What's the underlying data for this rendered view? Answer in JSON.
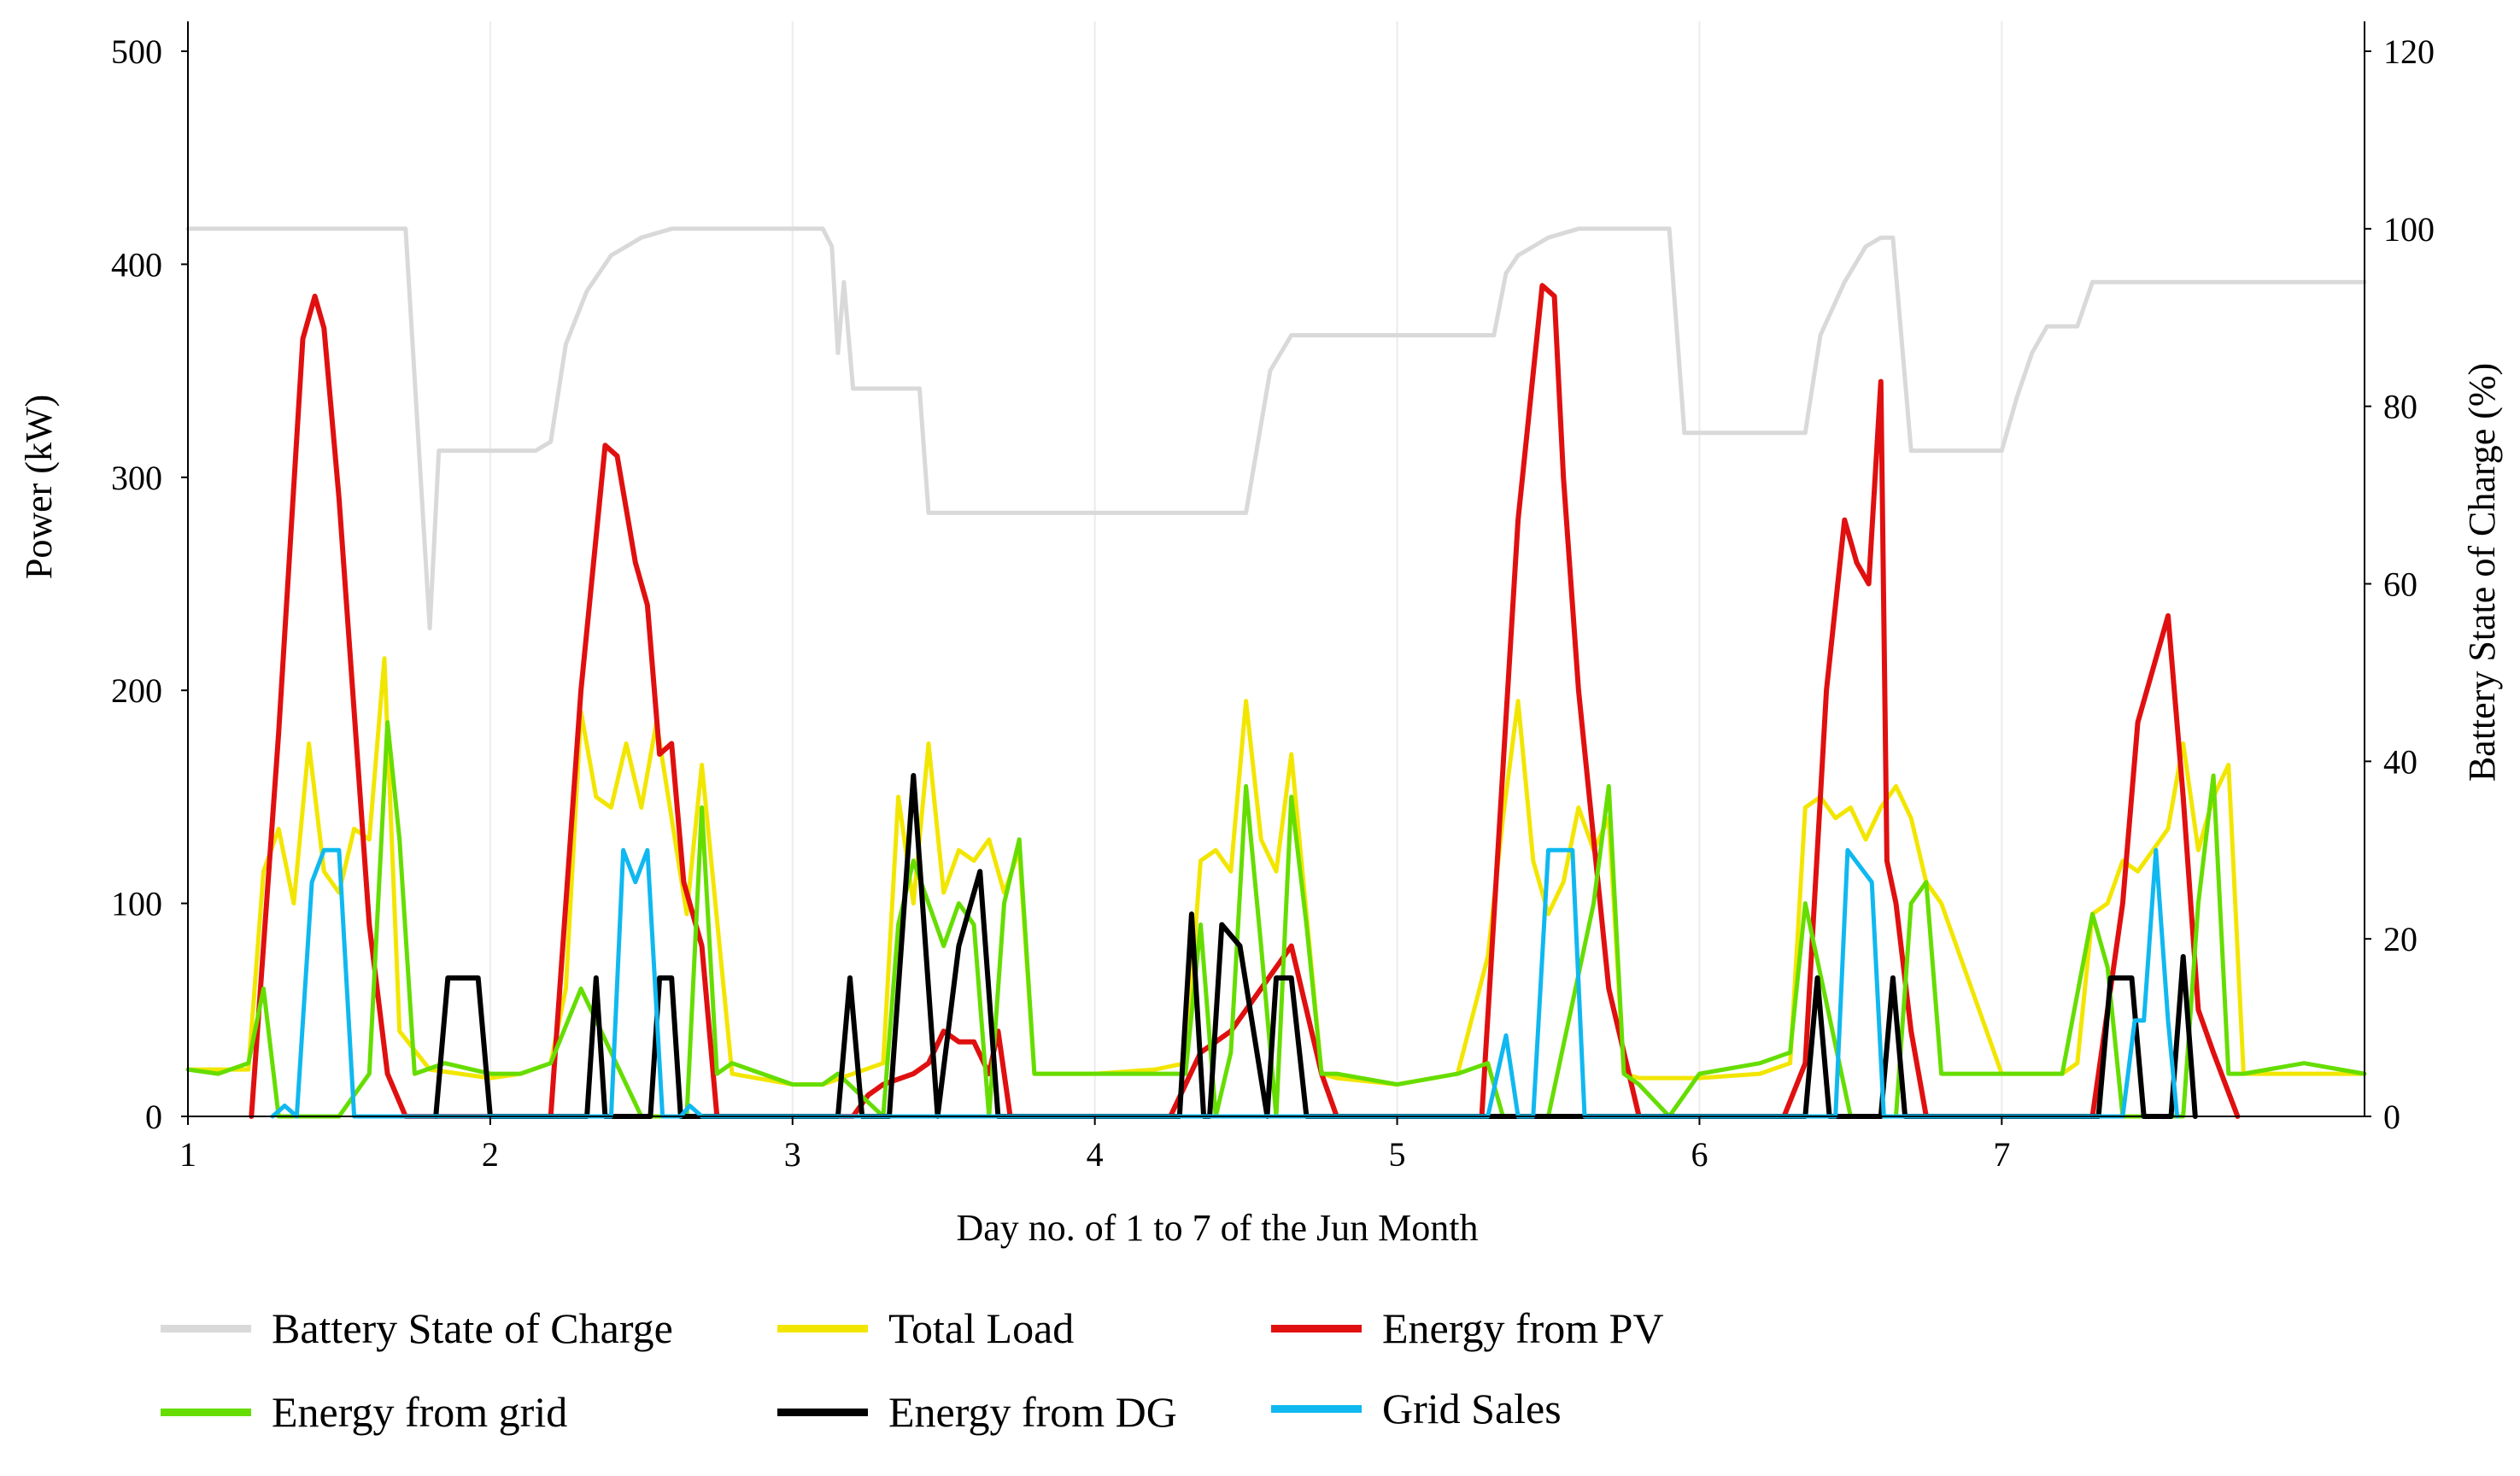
{
  "chart_data": {
    "type": "line",
    "xlabel": "Day no. of 1 to 7 of the Jun Month",
    "ylabel": "Power (kW)",
    "y2label": "Battery State of Charge (%)",
    "xlim": [
      1,
      8.2
    ],
    "ylim": [
      0,
      500
    ],
    "y2lim": [
      0,
      120
    ],
    "x_ticks": [
      1,
      2,
      3,
      4,
      5,
      6,
      7
    ],
    "x_tick_labels": [
      "1",
      "2",
      "3",
      "4",
      "5",
      "6",
      "7"
    ],
    "y_ticks": [
      0,
      100,
      200,
      300,
      400,
      500
    ],
    "y_tick_labels": [
      "0",
      "100",
      "200",
      "300",
      "400",
      "500"
    ],
    "y2_ticks": [
      0,
      20,
      40,
      60,
      80,
      100,
      120
    ],
    "y2_tick_labels": [
      "0",
      "20",
      "40",
      "60",
      "80",
      "100",
      "120"
    ],
    "legend_position": "bottom",
    "series": [
      {
        "name": "Battery State of Charge",
        "axis": "right",
        "color": "#d9d9d9",
        "x": [
          1.0,
          1.72,
          1.8,
          1.83,
          2.15,
          2.2,
          2.25,
          2.32,
          2.4,
          2.5,
          2.6,
          2.8,
          3.0,
          3.1,
          3.13,
          3.15,
          3.17,
          3.2,
          3.42,
          3.45,
          3.5,
          4.2,
          4.5,
          4.58,
          4.65,
          5.0,
          5.32,
          5.36,
          5.4,
          5.45,
          5.5,
          5.6,
          5.9,
          5.95,
          6.35,
          6.4,
          6.48,
          6.55,
          6.6,
          6.64,
          6.7,
          6.72,
          7.0,
          7.05,
          7.1,
          7.15,
          7.25,
          7.3,
          7.35,
          8.2
        ],
        "y": [
          100,
          100,
          55,
          75,
          75,
          76,
          87,
          93,
          97,
          99,
          100,
          100,
          100,
          100,
          98,
          86,
          94,
          82,
          82,
          68,
          68,
          68,
          68,
          84,
          88,
          88,
          88,
          95,
          97,
          98,
          99,
          100,
          100,
          77,
          77,
          88,
          94,
          98,
          99,
          99,
          75,
          75,
          75,
          81,
          86,
          89,
          89,
          94,
          94,
          94
        ]
      },
      {
        "name": "Total Load",
        "axis": "left",
        "color": "#f2e600",
        "x": [
          1.0,
          1.2,
          1.25,
          1.3,
          1.35,
          1.4,
          1.45,
          1.5,
          1.55,
          1.6,
          1.65,
          1.7,
          1.8,
          1.9,
          2.0,
          2.1,
          2.2,
          2.25,
          2.3,
          2.35,
          2.4,
          2.45,
          2.5,
          2.55,
          2.6,
          2.65,
          2.7,
          2.8,
          3.0,
          3.1,
          3.2,
          3.3,
          3.35,
          3.4,
          3.45,
          3.5,
          3.55,
          3.6,
          3.65,
          3.7,
          3.75,
          3.8,
          4.0,
          4.2,
          4.3,
          4.35,
          4.4,
          4.45,
          4.5,
          4.55,
          4.6,
          4.65,
          4.7,
          4.75,
          4.8,
          5.0,
          5.2,
          5.3,
          5.35,
          5.4,
          5.45,
          5.5,
          5.55,
          5.6,
          5.65,
          5.7,
          5.75,
          5.8,
          6.0,
          6.2,
          6.3,
          6.35,
          6.4,
          6.45,
          6.5,
          6.55,
          6.6,
          6.65,
          6.7,
          6.75,
          6.8,
          7.0,
          7.2,
          7.25,
          7.3,
          7.35,
          7.4,
          7.45,
          7.5,
          7.55,
          7.6,
          7.65,
          7.7,
          7.75,
          7.8,
          8.0,
          8.2
        ],
        "y": [
          22,
          22,
          115,
          135,
          100,
          175,
          115,
          105,
          135,
          130,
          215,
          40,
          22,
          20,
          18,
          20,
          25,
          60,
          190,
          150,
          145,
          175,
          145,
          185,
          140,
          95,
          165,
          20,
          15,
          15,
          20,
          25,
          150,
          100,
          175,
          105,
          125,
          120,
          130,
          105,
          125,
          20,
          20,
          22,
          25,
          120,
          125,
          115,
          195,
          130,
          115,
          170,
          95,
          20,
          18,
          15,
          20,
          75,
          140,
          195,
          120,
          95,
          110,
          145,
          125,
          140,
          20,
          18,
          18,
          20,
          25,
          145,
          150,
          140,
          145,
          130,
          145,
          155,
          140,
          110,
          100,
          20,
          20,
          25,
          95,
          100,
          120,
          115,
          125,
          135,
          175,
          125,
          150,
          165,
          20,
          20,
          20
        ]
      },
      {
        "name": "Energy from PV",
        "axis": "left",
        "color": "#e01010",
        "x": [
          1.21,
          1.3,
          1.38,
          1.42,
          1.45,
          1.5,
          1.6,
          1.66,
          1.72,
          2.2,
          2.3,
          2.38,
          2.42,
          2.48,
          2.52,
          2.56,
          2.6,
          2.64,
          2.7,
          2.75,
          3.15,
          3.2,
          3.25,
          3.3,
          3.4,
          3.45,
          3.5,
          3.55,
          3.6,
          3.65,
          3.68,
          3.72,
          4.25,
          4.35,
          4.45,
          4.55,
          4.65,
          4.75,
          4.8,
          5.28,
          5.4,
          5.48,
          5.52,
          5.55,
          5.6,
          5.7,
          5.8,
          6.28,
          6.35,
          6.42,
          6.48,
          6.52,
          6.56,
          6.6,
          6.62,
          6.65,
          6.7,
          6.75,
          7.3,
          7.4,
          7.45,
          7.5,
          7.55,
          7.6,
          7.65,
          7.7,
          7.78
        ],
        "y": [
          0,
          180,
          365,
          385,
          370,
          290,
          90,
          20,
          0,
          0,
          200,
          315,
          310,
          260,
          240,
          170,
          175,
          110,
          80,
          0,
          0,
          0,
          10,
          15,
          20,
          25,
          40,
          35,
          35,
          20,
          40,
          0,
          0,
          30,
          40,
          60,
          80,
          20,
          0,
          0,
          280,
          390,
          385,
          300,
          200,
          60,
          0,
          0,
          25,
          200,
          280,
          260,
          250,
          345,
          120,
          100,
          40,
          0,
          0,
          100,
          185,
          210,
          235,
          150,
          50,
          30,
          0
        ]
      },
      {
        "name": "Energy from grid",
        "axis": "left",
        "color": "#66dd00",
        "x": [
          1.0,
          1.1,
          1.2,
          1.25,
          1.3,
          1.5,
          1.6,
          1.66,
          1.7,
          1.75,
          1.85,
          2.0,
          2.1,
          2.2,
          2.3,
          2.5,
          2.65,
          2.7,
          2.75,
          2.8,
          3.0,
          3.1,
          3.15,
          3.3,
          3.35,
          3.4,
          3.5,
          3.55,
          3.6,
          3.65,
          3.7,
          3.75,
          3.8,
          4.0,
          4.2,
          4.3,
          4.35,
          4.4,
          4.45,
          4.5,
          4.55,
          4.6,
          4.65,
          4.7,
          4.75,
          4.8,
          5.0,
          5.2,
          5.3,
          5.35,
          5.5,
          5.65,
          5.7,
          5.75,
          5.8,
          5.9,
          6.0,
          6.2,
          6.3,
          6.35,
          6.5,
          6.65,
          6.7,
          6.75,
          6.8,
          7.0,
          7.2,
          7.3,
          7.35,
          7.4,
          7.5,
          7.6,
          7.65,
          7.7,
          7.75,
          7.8,
          8.0,
          8.2
        ],
        "y": [
          22,
          20,
          25,
          60,
          0,
          0,
          20,
          185,
          130,
          20,
          25,
          20,
          20,
          25,
          60,
          0,
          0,
          145,
          20,
          25,
          15,
          15,
          20,
          0,
          90,
          120,
          80,
          100,
          90,
          0,
          100,
          130,
          20,
          20,
          20,
          20,
          90,
          0,
          30,
          155,
          80,
          0,
          150,
          90,
          20,
          20,
          15,
          20,
          25,
          0,
          0,
          100,
          155,
          20,
          15,
          0,
          20,
          25,
          30,
          100,
          0,
          0,
          100,
          110,
          20,
          20,
          20,
          95,
          70,
          0,
          0,
          0,
          100,
          160,
          20,
          20,
          25,
          20
        ]
      },
      {
        "name": "Energy from DG",
        "axis": "left",
        "color": "#000000",
        "x": [
          1.82,
          1.86,
          1.96,
          2.0,
          2.32,
          2.35,
          2.38,
          2.53,
          2.56,
          2.6,
          2.63,
          3.15,
          3.19,
          3.23,
          3.32,
          3.4,
          3.48,
          3.55,
          3.62,
          3.68,
          4.28,
          4.32,
          4.36,
          4.38,
          4.42,
          4.48,
          4.57,
          4.6,
          4.65,
          4.7,
          6.35,
          6.39,
          6.43,
          6.6,
          6.64,
          6.68,
          7.32,
          7.36,
          7.43,
          7.47,
          7.56,
          7.6,
          7.64
        ],
        "y": [
          0,
          65,
          65,
          0,
          0,
          65,
          0,
          0,
          65,
          65,
          0,
          0,
          65,
          0,
          0,
          160,
          0,
          80,
          115,
          0,
          0,
          95,
          0,
          0,
          90,
          80,
          0,
          65,
          65,
          0,
          0,
          65,
          0,
          0,
          65,
          0,
          0,
          65,
          65,
          0,
          0,
          75,
          0
        ]
      },
      {
        "name": "Grid Sales",
        "axis": "left",
        "color": "#10b8f0",
        "x": [
          1.28,
          1.32,
          1.36,
          1.41,
          1.45,
          1.5,
          1.55,
          2.4,
          2.44,
          2.48,
          2.52,
          2.57,
          2.63,
          2.66,
          2.7,
          5.3,
          5.36,
          5.4,
          5.45,
          5.5,
          5.55,
          5.58,
          5.62,
          6.45,
          6.49,
          6.57,
          6.61,
          7.4,
          7.44,
          7.47,
          7.51,
          7.55,
          7.58
        ],
        "y": [
          0,
          5,
          0,
          110,
          125,
          125,
          0,
          0,
          125,
          110,
          125,
          0,
          0,
          5,
          0,
          0,
          38,
          0,
          0,
          125,
          125,
          125,
          0,
          0,
          125,
          110,
          0,
          0,
          45,
          45,
          125,
          45,
          0
        ]
      }
    ]
  },
  "legend": [
    {
      "label": "Battery  State  of Charge",
      "color": "#d9d9d9"
    },
    {
      "label": "Total Load",
      "color": "#f2e600"
    },
    {
      "label": "Energy  from PV",
      "color": "#e01010"
    },
    {
      "label": "Energy  from grid",
      "color": "#66dd00"
    },
    {
      "label": "Energy  from DG",
      "color": "#000000"
    },
    {
      "label": "Grid Sales",
      "color": "#10b8f0"
    }
  ]
}
